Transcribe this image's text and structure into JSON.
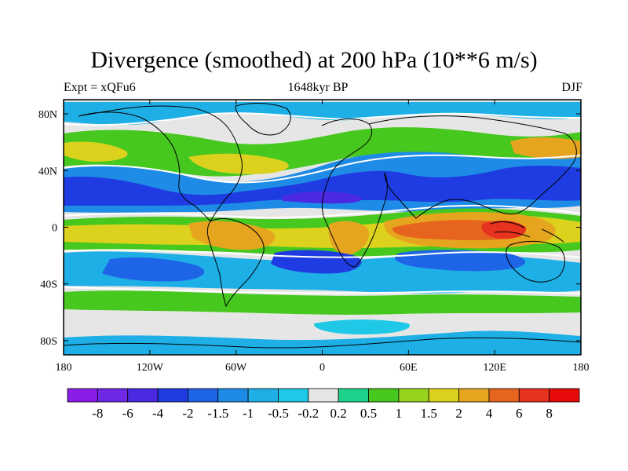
{
  "title": "Divergence (smoothed) at 200 hPa (10**6 m/s)",
  "subtitle_left": "Expt = xQFu6",
  "subtitle_center": "1648kyr BP",
  "subtitle_right": "DJF",
  "colors": {
    "background": "#ffffff",
    "zero_band": "#e6e6e6",
    "coast": "#000000",
    "zero_contour": "#ffffff"
  },
  "chart_data": {
    "type": "heatmap",
    "projection": "cylindrical-equidistant",
    "variable": "Divergence (smoothed) at 200 hPa",
    "units": "10**6 m/s",
    "lon_range": [
      -180,
      180
    ],
    "lat_range": [
      -90,
      90
    ],
    "x_ticks": [
      {
        "value": -180,
        "label": "180"
      },
      {
        "value": -120,
        "label": "120W"
      },
      {
        "value": -60,
        "label": "60W"
      },
      {
        "value": 0,
        "label": "0"
      },
      {
        "value": 60,
        "label": "60E"
      },
      {
        "value": 120,
        "label": "120E"
      },
      {
        "value": 180,
        "label": "180"
      }
    ],
    "y_ticks": [
      {
        "value": 80,
        "label": "80N"
      },
      {
        "value": 40,
        "label": "40N"
      },
      {
        "value": 0,
        "label": "0"
      },
      {
        "value": -40,
        "label": "40S"
      },
      {
        "value": -80,
        "label": "80S"
      }
    ],
    "colorbar": {
      "levels": [
        "-8",
        "-6",
        "-4",
        "-2",
        "-1.5",
        "-1",
        "-0.5",
        "-0.2",
        "0.2",
        "0.5",
        "1",
        "1.5",
        "2",
        "4",
        "6",
        "8"
      ],
      "colors": [
        "#8b1ee6",
        "#6e28e6",
        "#4b28e1",
        "#1e3ce1",
        "#1e64e6",
        "#1e8ce6",
        "#1eafe6",
        "#1ec8e6",
        "#e6e6e6",
        "#1ed28c",
        "#46c81e",
        "#96d21e",
        "#dcd21e",
        "#e6a51e",
        "#e6641e",
        "#e6321e",
        "#e60a0a"
      ]
    },
    "fields": [
      {
        "name": "subtropical-convergence-north",
        "lon": -160,
        "lat": 22,
        "value": -2.5
      },
      {
        "name": "subtropical-convergence-north",
        "lon": -100,
        "lat": 18,
        "value": -3
      },
      {
        "name": "subtropical-convergence-north",
        "lon": -60,
        "lat": 15,
        "value": -2.5
      },
      {
        "name": "subtropical-convergence-north",
        "lon": -20,
        "lat": 15,
        "value": -3
      },
      {
        "name": "subtropical-convergence-north",
        "lon": 20,
        "lat": 20,
        "value": -3
      },
      {
        "name": "subtropical-convergence-north",
        "lon": 60,
        "lat": 22,
        "value": -3
      },
      {
        "name": "subtropical-convergence-north",
        "lon": 100,
        "lat": 25,
        "value": -2.5
      },
      {
        "name": "subtropical-convergence-north",
        "lon": 160,
        "lat": 22,
        "value": -2
      },
      {
        "name": "tropical-divergence",
        "lon": -160,
        "lat": -10,
        "value": 2
      },
      {
        "name": "tropical-divergence",
        "lon": -110,
        "lat": -5,
        "value": 1.5
      },
      {
        "name": "tropical-divergence",
        "lon": -60,
        "lat": -10,
        "value": 3.5
      },
      {
        "name": "tropical-divergence",
        "lon": 25,
        "lat": -15,
        "value": 3.5
      },
      {
        "name": "tropical-divergence",
        "lon": 70,
        "lat": -5,
        "value": 4
      },
      {
        "name": "tropical-divergence",
        "lon": 100,
        "lat": -5,
        "value": 5
      },
      {
        "name": "tropical-divergence",
        "lon": 130,
        "lat": -5,
        "value": 6
      },
      {
        "name": "tropical-divergence",
        "lon": 160,
        "lat": -10,
        "value": 2
      },
      {
        "name": "southern-subtropical-convergence",
        "lon": -140,
        "lat": -30,
        "value": -1.5
      },
      {
        "name": "southern-subtropical-convergence",
        "lon": -90,
        "lat": -35,
        "value": -2
      },
      {
        "name": "southern-subtropical-convergence",
        "lon": -15,
        "lat": -25,
        "value": -2.5
      },
      {
        "name": "southern-subtropical-convergence",
        "lon": 60,
        "lat": -30,
        "value": -2
      },
      {
        "name": "southern-subtropical-convergence",
        "lon": 110,
        "lat": -30,
        "value": -1.5
      },
      {
        "name": "midlatitude-divergence-north",
        "lon": -150,
        "lat": 42,
        "value": 2
      },
      {
        "name": "midlatitude-divergence-north",
        "lon": -30,
        "lat": 40,
        "value": 2
      },
      {
        "name": "midlatitude-divergence-north",
        "lon": 140,
        "lat": 45,
        "value": 2
      },
      {
        "name": "midlatitude-divergence-south",
        "lon": -120,
        "lat": -50,
        "value": 1
      },
      {
        "name": "midlatitude-divergence-south",
        "lon": 60,
        "lat": -55,
        "value": 1
      },
      {
        "name": "polar-convergence-north",
        "lon": -50,
        "lat": 72,
        "value": -1
      },
      {
        "name": "polar-convergence-south",
        "lon": 0,
        "lat": -78,
        "value": -0.5
      }
    ]
  }
}
